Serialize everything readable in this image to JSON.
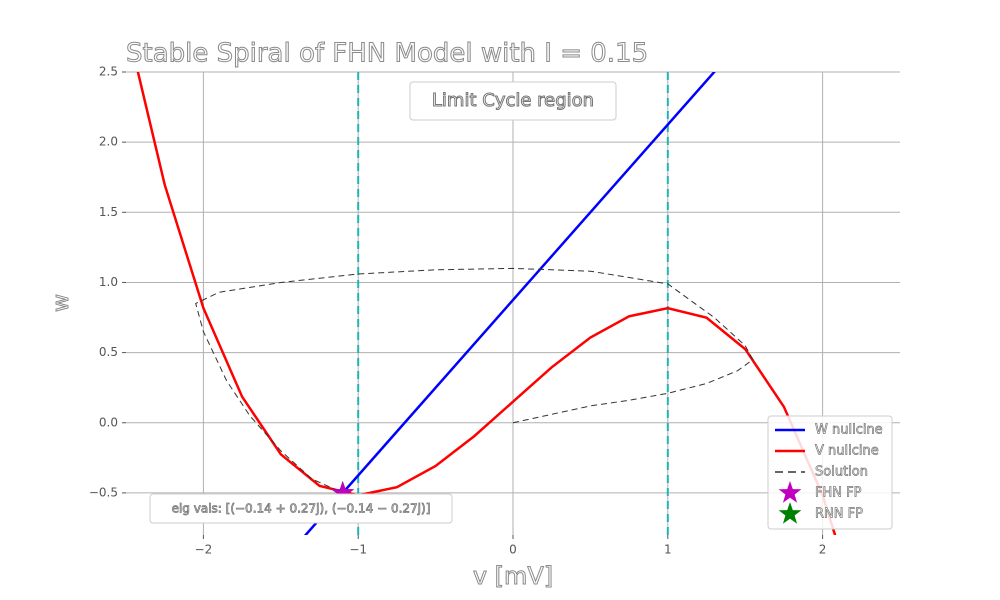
{
  "chart_data": {
    "type": "line",
    "title": "Stable Spiral of FHN Model with I = 0.15",
    "xlabel": "v [mV]",
    "ylabel": "w",
    "xlim": [
      -2.5,
      2.5
    ],
    "ylim": [
      -0.8,
      2.5
    ],
    "xticks": [
      {
        "value": -2,
        "label": "−2"
      },
      {
        "value": -1,
        "label": "−1"
      },
      0,
      1,
      2
    ],
    "yticks": [
      2.5,
      {
        "value": 2.0,
        "label": "2.0"
      },
      1.5,
      {
        "value": 1.0,
        "label": "1.0"
      },
      0.5,
      {
        "value": 0.0,
        "label": "0.0"
      },
      {
        "value": -0.5,
        "label": "−0.5"
      }
    ],
    "grid": true,
    "legend": "lower right",
    "vlines": {
      "x": [
        -1,
        1
      ],
      "color": "#1fb5b5"
    },
    "annotations": [
      "Limit Cycle region",
      "eig vals: [(−0.14 + 0.27j), (−0.14 − 0.27j)]"
    ],
    "series": [
      {
        "name": "W nullcine",
        "mark": "line",
        "color": "#0000ff",
        "x": [
          -1.5,
          1.5
        ],
        "values": [
          -1.0,
          2.75
        ]
      },
      {
        "name": "V nullcine",
        "mark": "line",
        "color": "#ff0000",
        "x": [
          -2.5,
          -2.25,
          -2.0,
          -1.75,
          -1.5,
          -1.25,
          -1.0,
          -0.75,
          -0.5,
          -0.25,
          0,
          0.25,
          0.5,
          0.75,
          1.0,
          1.25,
          1.5,
          1.75,
          2.0,
          2.25
        ],
        "values": [
          2.858,
          1.697,
          0.817,
          0.186,
          -0.225,
          -0.449,
          -0.517,
          -0.459,
          -0.308,
          -0.095,
          0.15,
          0.395,
          0.608,
          0.759,
          0.817,
          0.749,
          0.525,
          0.114,
          -0.517,
          -1.397
        ]
      },
      {
        "name": "Solution",
        "mark": "dashed",
        "color": "#333333",
        "x": [
          0,
          0.25,
          0.5,
          0.75,
          1.0,
          1.25,
          1.45,
          1.55,
          1.5,
          1.3,
          1.0,
          0.5,
          0,
          -0.5,
          -1.0,
          -1.5,
          -1.9,
          -2.05,
          -2.0,
          -1.85,
          -1.7,
          -1.5,
          -1.3,
          -1.1
        ],
        "values": [
          0,
          0.06,
          0.12,
          0.16,
          0.21,
          0.28,
          0.37,
          0.45,
          0.55,
          0.75,
          0.99,
          1.08,
          1.1,
          1.09,
          1.06,
          1.0,
          0.93,
          0.85,
          0.65,
          0.3,
          0.05,
          -0.2,
          -0.4,
          -0.5
        ]
      },
      {
        "name": "FHN FP",
        "mark": "star",
        "color": "#bf00bf",
        "x": [
          -1.1
        ],
        "values": [
          -0.5
        ]
      },
      {
        "name": "RNN FP",
        "mark": "star",
        "color": "#008000",
        "x": [
          -1.1
        ],
        "values": [
          -0.5
        ]
      }
    ]
  }
}
